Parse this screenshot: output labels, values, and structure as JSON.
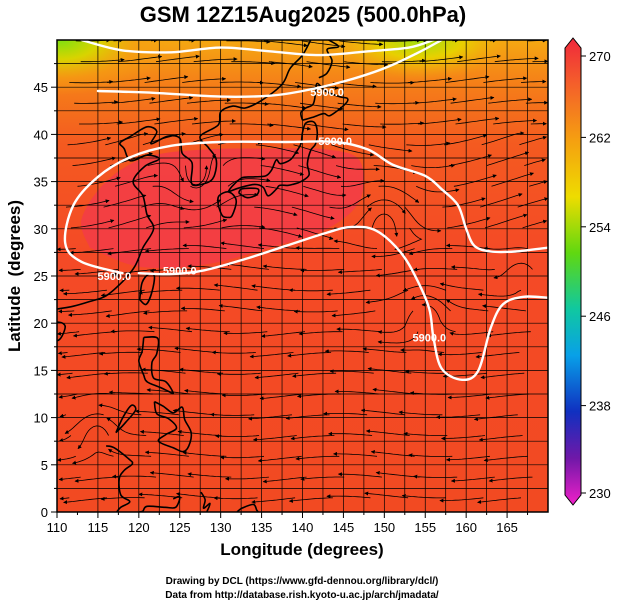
{
  "chart_data": {
    "type": "heatmap",
    "title": "GSM 12Z15Aug2025 (500.0hPa)",
    "xlabel": "Longitude (degrees)",
    "ylabel": "Latitude  (degrees)",
    "xlim": [
      110,
      170
    ],
    "ylim": [
      0,
      50
    ],
    "x_ticks": [
      "110",
      "115",
      "120",
      "125",
      "130",
      "135",
      "140",
      "145",
      "150",
      "155",
      "160",
      "165"
    ],
    "y_ticks": [
      "0",
      "5",
      "10",
      "15",
      "20",
      "25",
      "30",
      "35",
      "40",
      "45"
    ],
    "grid": true,
    "colorbar": {
      "range": [
        230,
        270
      ],
      "tick_labels": [
        "270",
        "262",
        "254",
        "246",
        "238",
        "230"
      ],
      "tick_values": [
        270,
        262,
        254,
        246,
        238,
        230
      ],
      "position": "right"
    },
    "contours": [
      {
        "value_label": "5900.0",
        "label_at": [
          143,
          44.5
        ],
        "points": [
          [
            115,
            44.6
          ],
          [
            122,
            44.4
          ],
          [
            130,
            44.0
          ],
          [
            136,
            44.1
          ],
          [
            140,
            44.6
          ],
          [
            145,
            45.6
          ],
          [
            150,
            47.0
          ],
          [
            154,
            48.6
          ],
          [
            157,
            50
          ]
        ]
      },
      {
        "value_label": "5900.0",
        "label_at": [
          117,
          25
        ],
        "points": [
          [
            118,
            25.3
          ],
          [
            113,
            26.5
          ],
          [
            111,
            28.5
          ],
          [
            112,
            32.5
          ],
          [
            115,
            35.5
          ],
          [
            119,
            37.6
          ],
          [
            124,
            38.8
          ],
          [
            130,
            39.2
          ],
          [
            138,
            39.2
          ],
          [
            144,
            39.2
          ],
          [
            148,
            38.4
          ],
          [
            151,
            36.8
          ],
          [
            155,
            35.6
          ],
          [
            157,
            34.2
          ],
          [
            159,
            32.5
          ],
          [
            160,
            30.0
          ],
          [
            161,
            28.2
          ],
          [
            163,
            27.6
          ],
          [
            166,
            27.6
          ],
          [
            170,
            28.0
          ]
        ]
      },
      {
        "value_label": "5900.0",
        "label_at": [
          144,
          39.3
        ],
        "points": []
      },
      {
        "value_label": "5900.0",
        "label_at": [
          125,
          25.6
        ],
        "points": [
          [
            120,
            25.3
          ],
          [
            124,
            25.2
          ],
          [
            128,
            25.6
          ],
          [
            133,
            26.8
          ],
          [
            138,
            28.2
          ],
          [
            143,
            29.6
          ],
          [
            146,
            30.2
          ],
          [
            149,
            29.8
          ],
          [
            152,
            27.5
          ],
          [
            154,
            24.6
          ],
          [
            155.5,
            21.5
          ],
          [
            156,
            18.5
          ],
          [
            157,
            15.2
          ],
          [
            159.5,
            14.0
          ],
          [
            161.5,
            15.0
          ],
          [
            163,
            19.5
          ],
          [
            164.5,
            22.0
          ],
          [
            167,
            22.8
          ],
          [
            170,
            22.7
          ]
        ]
      },
      {
        "value_label": "5900.0",
        "label_at": [
          155.5,
          18.5
        ],
        "points": []
      },
      {
        "value_label": "",
        "label_at": null,
        "points": [
          [
            113,
            50
          ],
          [
            118,
            48.9
          ],
          [
            124,
            48.7
          ],
          [
            130,
            49.2
          ],
          [
            136,
            48.8
          ],
          [
            142,
            48.4
          ],
          [
            148,
            48.8
          ],
          [
            153,
            49.2
          ],
          [
            156,
            50
          ]
        ]
      }
    ]
  },
  "credits": {
    "line1": "Drawing by DCL (https://www.gfd-dennou.org/library/dcl/)",
    "line2": "Data from http://database.rish.kyoto-u.ac.jp/arch/jmadata/"
  },
  "colors": {
    "warm_high": "#f23c48",
    "warm_mid": "#f4521e",
    "orange": "#f58a10",
    "yellow": "#f5d000",
    "green": "#5fdc10",
    "contour": "#ffffff",
    "coast": "#000000",
    "arrow": "#000000"
  }
}
